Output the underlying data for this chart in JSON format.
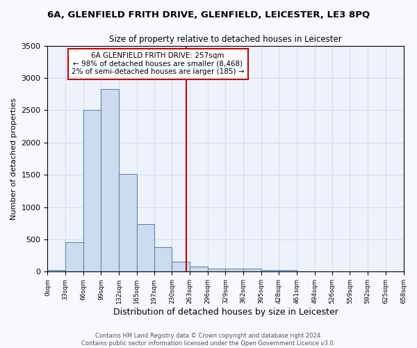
{
  "title": "6A, GLENFIELD FRITH DRIVE, GLENFIELD, LEICESTER, LE3 8PQ",
  "subtitle": "Size of property relative to detached houses in Leicester",
  "xlabel": "Distribution of detached houses by size in Leicester",
  "ylabel": "Number of detached properties",
  "bin_edges": [
    0,
    33,
    66,
    99,
    132,
    165,
    197,
    230,
    263,
    296,
    329,
    362,
    395,
    428,
    461,
    494,
    526,
    559,
    592,
    625,
    658
  ],
  "bar_values": [
    30,
    460,
    2500,
    2830,
    1510,
    740,
    380,
    150,
    80,
    50,
    45,
    45,
    30,
    30,
    0,
    0,
    0,
    0,
    0,
    0
  ],
  "bar_color": "#ccdcee",
  "bar_edge_color": "#5588bb",
  "grid_color": "#d4ddf0",
  "background_color": "#eef2fc",
  "fig_background_color": "#f8f9ff",
  "property_value": 257,
  "vline_color": "#cc0000",
  "annotation_line1": "6A GLENFIELD FRITH DRIVE: 257sqm",
  "annotation_line2": "← 98% of detached houses are smaller (8,468)",
  "annotation_line3": "2% of semi-detached houses are larger (185) →",
  "annotation_box_color": "#ffffff",
  "annotation_box_edge": "#cc0000",
  "ylim": [
    0,
    3500
  ],
  "yticks": [
    0,
    500,
    1000,
    1500,
    2000,
    2500,
    3000,
    3500
  ],
  "footer_text": "Contains HM Land Registry data © Crown copyright and database right 2024.\nContains public sector information licensed under the Open Government Licence v3.0.",
  "tick_labels": [
    "0sqm",
    "33sqm",
    "66sqm",
    "99sqm",
    "132sqm",
    "165sqm",
    "197sqm",
    "230sqm",
    "263sqm",
    "296sqm",
    "329sqm",
    "362sqm",
    "395sqm",
    "428sqm",
    "461sqm",
    "494sqm",
    "526sqm",
    "559sqm",
    "592sqm",
    "625sqm",
    "658sqm"
  ],
  "title_fontsize": 9.5,
  "subtitle_fontsize": 8.5,
  "ylabel_fontsize": 8,
  "xlabel_fontsize": 9,
  "tick_fontsize": 6.5,
  "ytick_fontsize": 8,
  "annotation_fontsize": 7.5,
  "footer_fontsize": 6
}
